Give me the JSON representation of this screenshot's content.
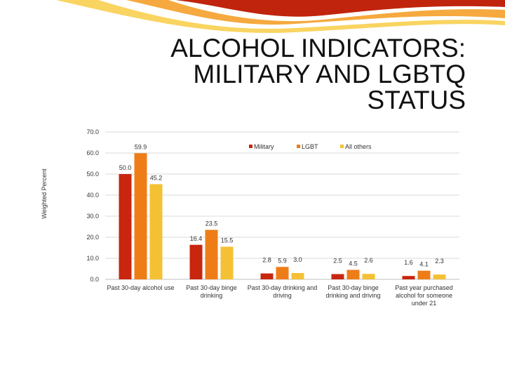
{
  "title_lines": [
    "ALCOHOL INDICATORS:",
    "MILITARY AND LGBTQ",
    "STATUS"
  ],
  "colors": {
    "swoosh_dark": "#c0240c",
    "swoosh_light": "#f39a1c",
    "swoosh_yellow": "#f7c93a",
    "grid": "#d9d9d9",
    "text": "#333333"
  },
  "chart_data": {
    "type": "bar",
    "ylabel": "Weighted Percent",
    "ylim": [
      0,
      70
    ],
    "yticks": [
      "0.0",
      "10.0",
      "20.0",
      "30.0",
      "40.0",
      "50.0",
      "60.0",
      "70.0"
    ],
    "grid": true,
    "legend_position": "top-right",
    "categories": [
      [
        "Past 30-day alcohol use"
      ],
      [
        "Past 30-day binge",
        "drinking"
      ],
      [
        "Past 30-day drinking and",
        "driving"
      ],
      [
        "Past 30-day binge",
        "drinking and driving"
      ],
      [
        "Past year purchased",
        "alcohol for someone",
        "under 21"
      ]
    ],
    "series": [
      {
        "name": "Military",
        "color": "#c8260f",
        "values": [
          50.0,
          16.4,
          2.8,
          2.5,
          1.6
        ],
        "labels": [
          "50.0",
          "16.4",
          "2.8",
          "2.5",
          "1.6"
        ]
      },
      {
        "name": "LGBT",
        "color": "#ee7d18",
        "values": [
          59.9,
          23.5,
          5.9,
          4.5,
          4.1
        ],
        "labels": [
          "59.9",
          "23.5",
          "5.9",
          "4.5",
          "4.1"
        ]
      },
      {
        "name": "All others",
        "color": "#f4c134",
        "values": [
          45.2,
          15.5,
          3.0,
          2.6,
          2.3
        ],
        "labels": [
          "45.2",
          "15.5",
          "3.0",
          "2.6",
          "2.3"
        ]
      }
    ]
  }
}
